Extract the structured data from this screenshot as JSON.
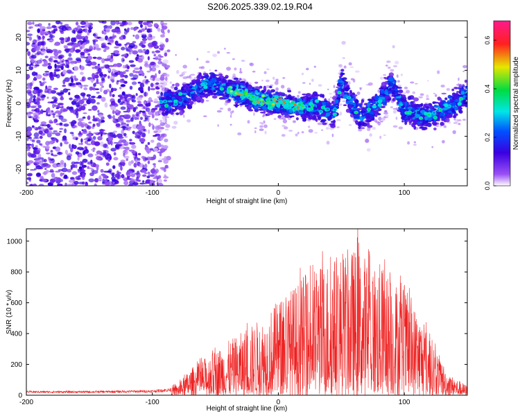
{
  "title": "S206.2025.339.02.19.R04",
  "colors": {
    "snr_line": "#ee2222",
    "frame": "#000000",
    "background": "#ffffff",
    "noise_speckle": "#7a3ef0",
    "faint_speckle": "#d2bdfa"
  },
  "chart_data": [
    {
      "type": "heatmap",
      "title": "",
      "xlabel": "Height of straight line (km)",
      "ylabel": "Frequency (Hz)",
      "xlim": [
        -200,
        150
      ],
      "ylim": [
        -25,
        25
      ],
      "xticks": [
        -200,
        -100,
        0,
        100
      ],
      "xtick_labels": [
        "-200",
        "-100",
        "0",
        "100"
      ],
      "yticks": [
        -20,
        -10,
        0,
        10,
        20
      ],
      "ytick_labels": [
        "-20",
        "-10",
        "0",
        "10",
        "20"
      ],
      "colorbar": {
        "label": "Normalized spectral amplitude",
        "range": [
          0.0,
          0.68
        ],
        "ticks": [
          0.0,
          0.2,
          0.4,
          0.6
        ],
        "tick_labels": [
          "0.0",
          "0.2",
          "0.4",
          "0.6"
        ],
        "colormap": "rainbow (white - violet - blue - cyan - green - yellow - red - magenta)"
      },
      "features": {
        "noise_region_x": [
          -200,
          -93
        ],
        "signal_band_x": [
          -93,
          150
        ],
        "signal_center_freq_by_height": [
          {
            "x": -90,
            "f": 0
          },
          {
            "x": -80,
            "f": 1
          },
          {
            "x": -65,
            "f": 4
          },
          {
            "x": -55,
            "f": 6
          },
          {
            "x": -45,
            "f": 5
          },
          {
            "x": -30,
            "f": 3
          },
          {
            "x": -15,
            "f": 1
          },
          {
            "x": 0,
            "f": 0
          },
          {
            "x": 15,
            "f": -1
          },
          {
            "x": 30,
            "f": -1
          },
          {
            "x": 45,
            "f": -3
          },
          {
            "x": 50,
            "f": 7
          },
          {
            "x": 55,
            "f": 2
          },
          {
            "x": 65,
            "f": -4
          },
          {
            "x": 80,
            "f": 0
          },
          {
            "x": 90,
            "f": 6
          },
          {
            "x": 100,
            "f": -2
          },
          {
            "x": 115,
            "f": -4
          },
          {
            "x": 125,
            "f": -3
          },
          {
            "x": 140,
            "f": 0
          },
          {
            "x": 150,
            "f": 3
          }
        ],
        "peak_amplitude_region_x": [
          -40,
          20
        ]
      }
    },
    {
      "type": "line",
      "title": "",
      "xlabel": "Height of straight line (km)",
      "ylabel": "SNR (10 * v/v)",
      "xlim": [
        -200,
        150
      ],
      "ylim": [
        0,
        1080
      ],
      "xticks": [
        -200,
        -100,
        0,
        100
      ],
      "xtick_labels": [
        "-200",
        "-100",
        "0",
        "100"
      ],
      "yticks": [
        0,
        200,
        400,
        600,
        800,
        1000
      ],
      "ytick_labels": [
        "0",
        "200",
        "400",
        "600",
        "800",
        "1000"
      ],
      "series": [
        {
          "name": "SNR",
          "envelope": [
            {
              "x": -200,
              "y": 25
            },
            {
              "x": -150,
              "y": 25
            },
            {
              "x": -100,
              "y": 30
            },
            {
              "x": -80,
              "y": 45
            },
            {
              "x": -70,
              "y": 110
            },
            {
              "x": -50,
              "y": 190
            },
            {
              "x": -30,
              "y": 260
            },
            {
              "x": -10,
              "y": 340
            },
            {
              "x": 0,
              "y": 400
            },
            {
              "x": 20,
              "y": 500
            },
            {
              "x": 40,
              "y": 580
            },
            {
              "x": 60,
              "y": 620
            },
            {
              "x": 80,
              "y": 560
            },
            {
              "x": 100,
              "y": 450
            },
            {
              "x": 115,
              "y": 320
            },
            {
              "x": 125,
              "y": 200
            },
            {
              "x": 135,
              "y": 90
            },
            {
              "x": 150,
              "y": 40
            }
          ],
          "peak": {
            "x": 63,
            "y": 1080
          }
        }
      ]
    }
  ]
}
